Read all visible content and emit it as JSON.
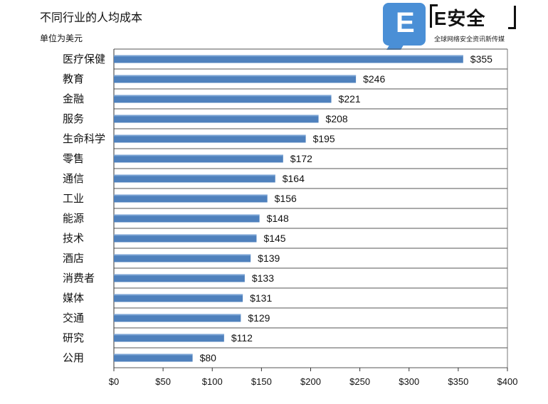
{
  "header": {
    "title": "不同行业的人均成本",
    "subtitle": "单位为美元"
  },
  "logo": {
    "letter": "E",
    "name": "E安全",
    "tagline": "全球网络安全资讯新传媒"
  },
  "chart_data": {
    "type": "bar",
    "orientation": "horizontal",
    "categories": [
      "医疗保健",
      "教育",
      "金融",
      "服务",
      "生命科学",
      "零售",
      "通信",
      "工业",
      "能源",
      "技术",
      "酒店",
      "消费者",
      "媒体",
      "交通",
      "研究",
      "公用"
    ],
    "values": [
      355,
      246,
      221,
      208,
      195,
      172,
      164,
      156,
      148,
      145,
      139,
      133,
      131,
      129,
      112,
      80
    ],
    "value_labels": [
      "$355",
      "$246",
      "$221",
      "$208",
      "$195",
      "$172",
      "$164",
      "$156",
      "$148",
      "$145",
      "$139",
      "$133",
      "$131",
      "$129",
      "$112",
      "$80"
    ],
    "x_ticks": [
      0,
      50,
      100,
      150,
      200,
      250,
      300,
      350,
      400
    ],
    "x_tick_labels": [
      "$0",
      "$50",
      "$100",
      "$150",
      "$200",
      "$250",
      "$300",
      "$350",
      "$400"
    ],
    "xlim": [
      0,
      400
    ],
    "grid": true,
    "bar_color": "#4f81bd",
    "title": "不同行业的人均成本"
  }
}
